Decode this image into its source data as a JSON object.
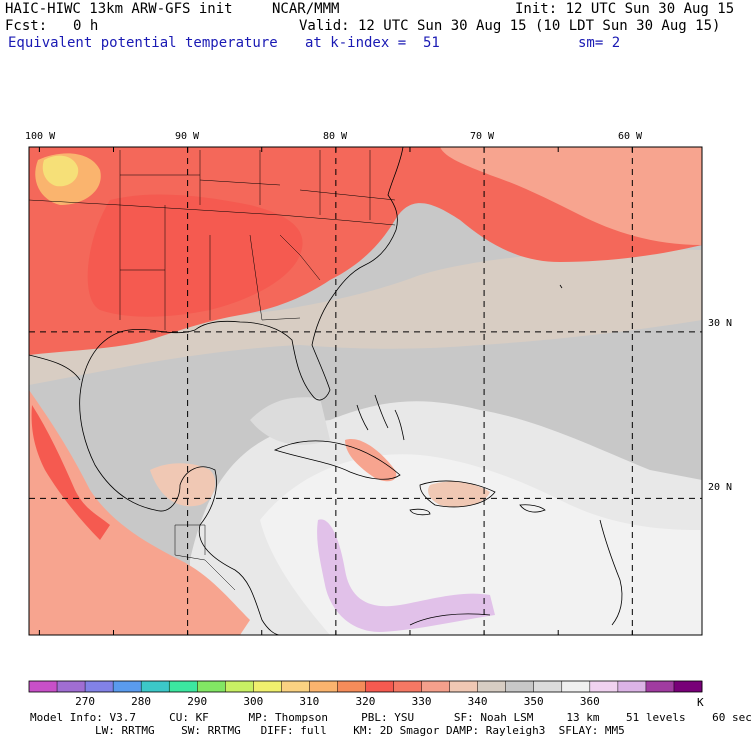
{
  "header": {
    "model_title": "HAIC-HIWC 13km ARW-GFS init",
    "org": "NCAR/MMM",
    "init": "Init: 12 UTC Sun 30 Aug 15",
    "fcst_label": "Fcst:",
    "fcst_value": "0 h",
    "valid": "Valid: 12 UTC Sun 30 Aug 15 (10 LDT Sun 30 Aug 15)",
    "field_name": "Equivalent potential temperature",
    "level": "at k-index =  51",
    "smoothing": "sm= 2"
  },
  "map": {
    "lon_labels": [
      "100 W",
      "90 W",
      "80 W",
      "70 W",
      "60 W"
    ],
    "lat_labels": [
      "30 N",
      "20 N"
    ],
    "grid_lons": [
      -90,
      -80,
      -70,
      -60
    ],
    "grid_lats": [
      30,
      20
    ],
    "extent": {
      "lon_min": -100.7,
      "lon_max": -55.3,
      "lat_min": 11.8,
      "lat_max": 41.1
    }
  },
  "colorbar": {
    "levels": [
      "270",
      "280",
      "290",
      "300",
      "310",
      "320",
      "330",
      "340",
      "350",
      "360"
    ],
    "unit": "K",
    "colors": [
      "#c850c8",
      "#a06ed2",
      "#8282e6",
      "#5a9bee",
      "#3cc8c8",
      "#3ce6a0",
      "#82e664",
      "#c8f064",
      "#f0f06e",
      "#fad282",
      "#fab46e",
      "#f58c5a",
      "#f55a50",
      "#f57864",
      "#f5a08c",
      "#f0c8b4",
      "#d7cdc3",
      "#c8c8c8",
      "#dcdcdc",
      "#f0f0f0",
      "#f0d2f0",
      "#dcb4e6",
      "#a03ca0",
      "#780078"
    ]
  },
  "model_info": {
    "line1": "Model Info: V3.7     CU: KF      MP: Thompson     PBL: YSU      SF: Noah LSM     13 km    51 levels    60 sec",
    "line2": "LW: RRTMG    SW: RRTMG   DIFF: full    KM: 2D Smagor DAMP: Rayleigh3  SFLAY: MM5"
  }
}
